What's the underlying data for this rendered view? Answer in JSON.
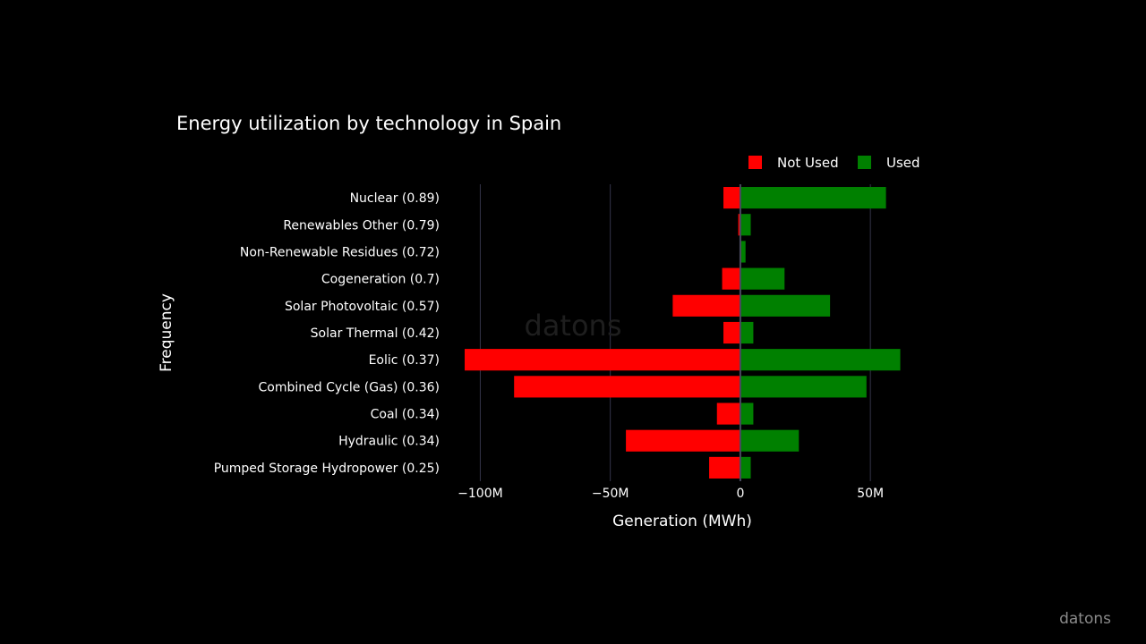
{
  "brand": "datons",
  "chart_data": {
    "type": "bar",
    "orientation": "horizontal",
    "barmode": "relative",
    "title": "Energy utilization by technology in Spain",
    "xlabel": "Generation (MWh)",
    "ylabel": "Frequency",
    "xlim": [
      -106000000,
      62000000
    ],
    "x_ticks": [
      {
        "value": -100000000,
        "label": "−100M"
      },
      {
        "value": -50000000,
        "label": "−50M"
      },
      {
        "value": 0,
        "label": "0"
      },
      {
        "value": 50000000,
        "label": "50M"
      }
    ],
    "categories": [
      "Nuclear (0.89)",
      "Renewables Other (0.79)",
      "Non-Renewable Residues (0.72)",
      "Cogeneration (0.7)",
      "Solar Photovoltaic (0.57)",
      "Solar Thermal (0.42)",
      "Eolic (0.37)",
      "Combined Cycle (Gas) (0.36)",
      "Coal (0.34)",
      "Hydraulic (0.34)",
      "Pumped Storage Hydropower (0.25)"
    ],
    "series": [
      {
        "name": "Not Used",
        "color": "#ff0000",
        "values": [
          -6500000,
          -800000,
          -300000,
          -7000000,
          -26000000,
          -6500000,
          -106000000,
          -87000000,
          -9000000,
          -44000000,
          -12000000
        ]
      },
      {
        "name": "Used",
        "color": "#008000",
        "values": [
          56000000,
          4000000,
          2000000,
          17000000,
          34500000,
          5000000,
          61500000,
          48500000,
          5000000,
          22500000,
          4000000
        ]
      }
    ],
    "legend_position": "top-right",
    "grid": true,
    "watermark": "datons"
  }
}
